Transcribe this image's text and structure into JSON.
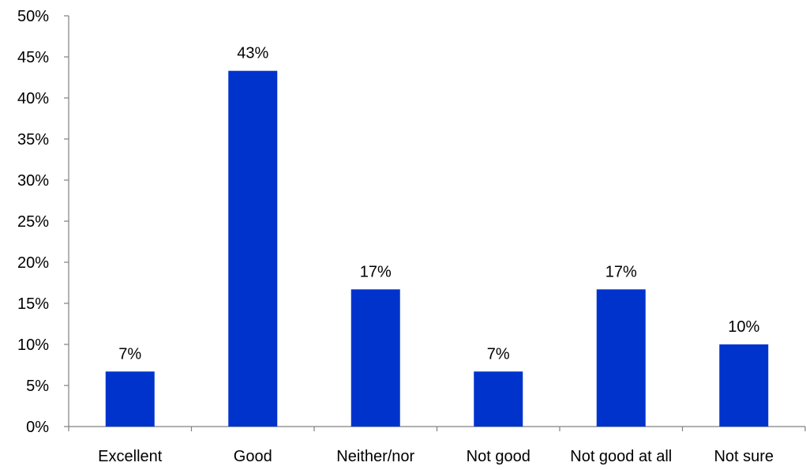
{
  "chart_data": {
    "type": "bar",
    "categories": [
      "Excellent",
      "Good",
      "Neither/nor",
      "Not good",
      "Not good at all",
      "Not sure"
    ],
    "values": [
      6.7,
      43.3,
      16.7,
      6.7,
      16.7,
      10.0
    ],
    "data_labels": [
      "7%",
      "43%",
      "17%",
      "7%",
      "17%",
      "10%"
    ],
    "ylim": [
      0,
      50
    ],
    "y_ticks": [
      0,
      5,
      10,
      15,
      20,
      25,
      30,
      35,
      40,
      45,
      50
    ],
    "y_tick_labels": [
      "0%",
      "5%",
      "10%",
      "15%",
      "20%",
      "25%",
      "30%",
      "35%",
      "40%",
      "45%",
      "50%"
    ],
    "title": "",
    "xlabel": "",
    "ylabel": "",
    "grid": false,
    "legend": "none",
    "bar_color": "#0033CC"
  }
}
